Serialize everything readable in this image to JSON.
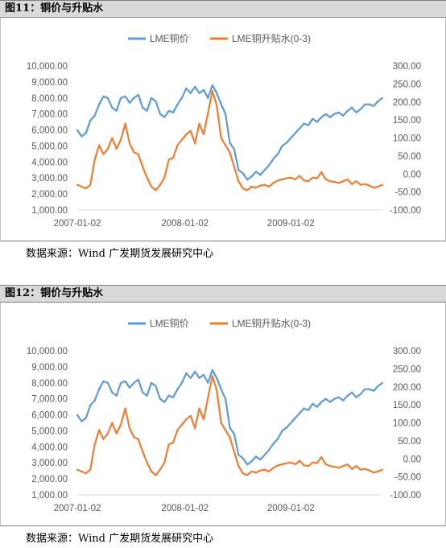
{
  "figures": [
    {
      "title": "图11：铜价与升贴水",
      "source": "数据来源：Wind  广发期货发展研究中心"
    },
    {
      "title": "图12：铜价与升贴水",
      "source": "数据来源：Wind  广发期货发展研究中心"
    }
  ],
  "chart_data": {
    "type": "line",
    "title": "",
    "x_tick_labels": [
      "2007-01-02",
      "2008-01-02",
      "2009-01-02"
    ],
    "left_axis": {
      "min": 1000,
      "max": 10000,
      "ticks": [
        "1,000.00",
        "2,000.00",
        "3,000.00",
        "4,000.00",
        "5,000.00",
        "6,000.00",
        "7,000.00",
        "8,000.00",
        "9,000.00",
        "10,000.00"
      ]
    },
    "right_axis": {
      "min": -100,
      "max": 300,
      "ticks": [
        "-100.00",
        "-50.00",
        "0.00",
        "50.00",
        "100.00",
        "150.00",
        "200.00",
        "250.00",
        "300.00"
      ]
    },
    "x_range": [
      0,
      35
    ],
    "legend_position": "top",
    "series": [
      {
        "name": "LME铜价",
        "axis": "left",
        "color": "#5b9bd5",
        "x": [
          0,
          0.5,
          1,
          1.5,
          2,
          2.5,
          3,
          3.5,
          4,
          4.5,
          5,
          5.5,
          6,
          6.5,
          7,
          7.5,
          8,
          8.5,
          9,
          9.5,
          10,
          10.5,
          11,
          11.5,
          12,
          12.5,
          13,
          13.5,
          14,
          14.5,
          15,
          15.5,
          16,
          16.5,
          17,
          17.5,
          18,
          18.5,
          19,
          19.5,
          20,
          20.5,
          21,
          21.5,
          22,
          22.5,
          23,
          23.5,
          24,
          24.5,
          25,
          25.5,
          26,
          26.5,
          27,
          27.5,
          28,
          28.5,
          29,
          29.5,
          30,
          30.5,
          31,
          31.5,
          32,
          32.5,
          33,
          33.5,
          34,
          34.5,
          35
        ],
        "values": [
          6000,
          5600,
          5800,
          6600,
          6900,
          7600,
          8100,
          8000,
          7400,
          7200,
          8000,
          8100,
          7700,
          8000,
          8200,
          7400,
          7200,
          8000,
          7800,
          7000,
          6800,
          7200,
          7100,
          7600,
          8000,
          8600,
          8300,
          8700,
          8300,
          8500,
          8000,
          8800,
          8300,
          7600,
          7000,
          5200,
          4800,
          3500,
          3300,
          2900,
          3100,
          3400,
          3200,
          3500,
          3800,
          4200,
          4500,
          5000,
          5200,
          5500,
          5800,
          6100,
          6400,
          6300,
          6700,
          6500,
          6800,
          7000,
          6800,
          7000,
          7100,
          6900,
          7200,
          7400,
          7100,
          7300,
          7600,
          7600,
          7500,
          7800,
          8000
        ]
      },
      {
        "name": "LME铜升贴水(0-3)",
        "axis": "right",
        "color": "#ed7d31",
        "x": [
          0,
          0.5,
          1,
          1.5,
          2,
          2.5,
          3,
          3.5,
          4,
          4.5,
          5,
          5.5,
          6,
          6.5,
          7,
          7.5,
          8,
          8.5,
          9,
          9.5,
          10,
          10.5,
          11,
          11.5,
          12,
          12.5,
          13,
          13.5,
          14,
          14.5,
          15,
          15.5,
          16,
          16.5,
          17,
          17.5,
          18,
          18.5,
          19,
          19.5,
          20,
          20.5,
          21,
          21.5,
          22,
          22.5,
          23,
          23.5,
          24,
          24.5,
          25,
          25.5,
          26,
          26.5,
          27,
          27.5,
          28,
          28.5,
          29,
          29.5,
          30,
          30.5,
          31,
          31.5,
          32,
          32.5,
          33,
          33.5,
          34,
          34.5,
          35
        ],
        "values": [
          -30,
          -35,
          -40,
          -30,
          40,
          80,
          55,
          70,
          100,
          70,
          95,
          140,
          85,
          60,
          55,
          20,
          -10,
          -35,
          -45,
          -30,
          -10,
          40,
          45,
          80,
          95,
          110,
          120,
          85,
          140,
          110,
          170,
          230,
          190,
          100,
          80,
          60,
          20,
          -20,
          -40,
          -45,
          -35,
          -38,
          -32,
          -30,
          -35,
          -25,
          -18,
          -15,
          -12,
          -10,
          -15,
          -5,
          -18,
          -20,
          -10,
          -12,
          5,
          -15,
          -20,
          -22,
          -25,
          -20,
          -15,
          -28,
          -20,
          -30,
          -28,
          -32,
          -38,
          -35,
          -30
        ]
      }
    ]
  }
}
